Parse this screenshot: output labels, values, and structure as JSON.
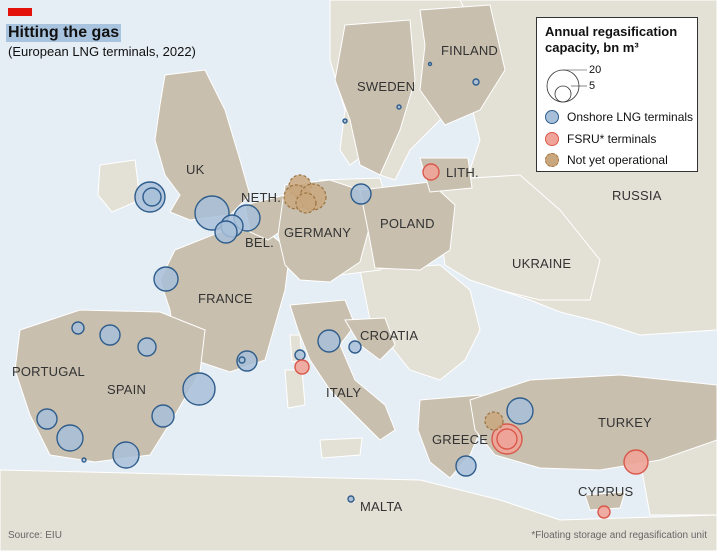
{
  "header": {
    "title": "Hitting the gas",
    "subtitle": "(European LNG terminals, 2022)"
  },
  "countries": {
    "uk": "UK",
    "neth": "NETH.",
    "bel": "BEL.",
    "germany": "GERMANY",
    "france": "FRANCE",
    "portugal": "PORTUGAL",
    "spain": "SPAIN",
    "italy": "ITALY",
    "croatia": "CROATIA",
    "poland": "POLAND",
    "sweden": "SWEDEN",
    "finland": "FINLAND",
    "lith": "LITH.",
    "russia": "RUSSIA",
    "ukraine": "UKRAINE",
    "greece": "GREECE",
    "turkey": "TURKEY",
    "cyprus": "CYPRUS",
    "malta": "MALTA"
  },
  "legend": {
    "title": "Annual regasification capacity, bn m³",
    "size_large": "20",
    "size_small": "5",
    "items": [
      {
        "label": "Onshore LNG terminals",
        "color": "#a8bfd9",
        "stroke": "#2f5d8c"
      },
      {
        "label": "FSRU* terminals",
        "color": "#f0a499",
        "stroke": "#d9584b"
      },
      {
        "label": "Not yet operational",
        "color": "#c9a77e",
        "stroke": "#9c7240"
      }
    ]
  },
  "footer": {
    "source": "Source: EIU",
    "footnote": "*Floating storage and regasification unit"
  },
  "colors": {
    "sea": "#e6eef5",
    "land_highlight": "#c8bfae",
    "land_other": "#e3e0d6",
    "onshore_fill": "#a8bfd9",
    "onshore_stroke": "#2f5d8c",
    "fsru_fill": "#f0a499",
    "fsru_stroke": "#d9584b",
    "planned_fill": "#c9a77e",
    "planned_stroke": "#9c7240"
  }
}
